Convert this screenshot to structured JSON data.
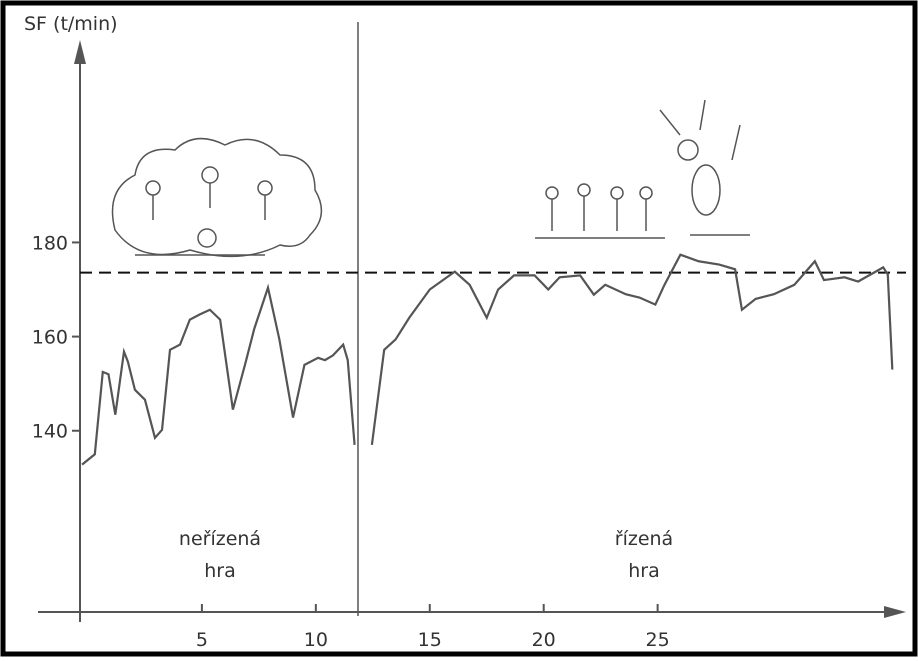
{
  "chart_data": {
    "type": "line",
    "y_label": "SF (t/min)",
    "xlim": [
      -0.35,
      35.9
    ],
    "ylim": [
      101.5,
      223
    ],
    "xticks": [
      5,
      10,
      15,
      20,
      25
    ],
    "yticks": [
      140,
      160,
      180
    ],
    "reference_line": 173.6,
    "divider_x": 11.85,
    "series": [
      {
        "color": "#555555",
        "x": [
          -0.26,
          0.3,
          0.65,
          0.9,
          1.2,
          1.58,
          1.75,
          2.06,
          2.5,
          2.94,
          3.25,
          3.6,
          4.04,
          4.47,
          4.9,
          5.35,
          5.8,
          6.36,
          6.89,
          7.3,
          7.9,
          8.4,
          9.0,
          9.5,
          10.1,
          10.4,
          10.75,
          11.2,
          11.4,
          11.7
        ],
        "values": [
          132.8,
          135,
          152.5,
          152,
          143.4,
          156.8,
          154.7,
          148.7,
          146.6,
          138.5,
          140.2,
          157.2,
          158.3,
          163.6,
          164.7,
          165.7,
          163.6,
          144.5,
          154,
          161.7,
          170.4,
          159.4,
          142.8,
          154,
          155.5,
          155,
          156,
          158.3,
          155,
          137
        ]
      },
      {
        "color": "#555555",
        "x": [
          12.46,
          13,
          13.5,
          14.1,
          15,
          16.1,
          16.75,
          17.5,
          18,
          18.7,
          19.6,
          20.2,
          20.7,
          21.6,
          22.2,
          22.7,
          23.6,
          24.2,
          24.9,
          25.3,
          26,
          26.8,
          27.7,
          28.4,
          28.7,
          29.3,
          30.1,
          31,
          31.9,
          32.3,
          33.2,
          33.8,
          34.9,
          35.1,
          35.3
        ],
        "values": [
          137,
          157.2,
          159.4,
          164,
          170,
          173.8,
          171,
          164,
          170,
          173,
          173,
          170,
          172.6,
          173,
          168.9,
          171,
          169,
          168.3,
          166.8,
          171,
          177.4,
          176,
          175.3,
          174.3,
          165.7,
          168,
          169,
          171,
          176,
          172,
          172.6,
          171.7,
          174.7,
          173.2,
          153
        ]
      }
    ],
    "annotations": [
      {
        "lines": [
          "neřízená",
          "hra"
        ]
      },
      {
        "lines": [
          "řízená",
          "hra"
        ]
      }
    ]
  }
}
